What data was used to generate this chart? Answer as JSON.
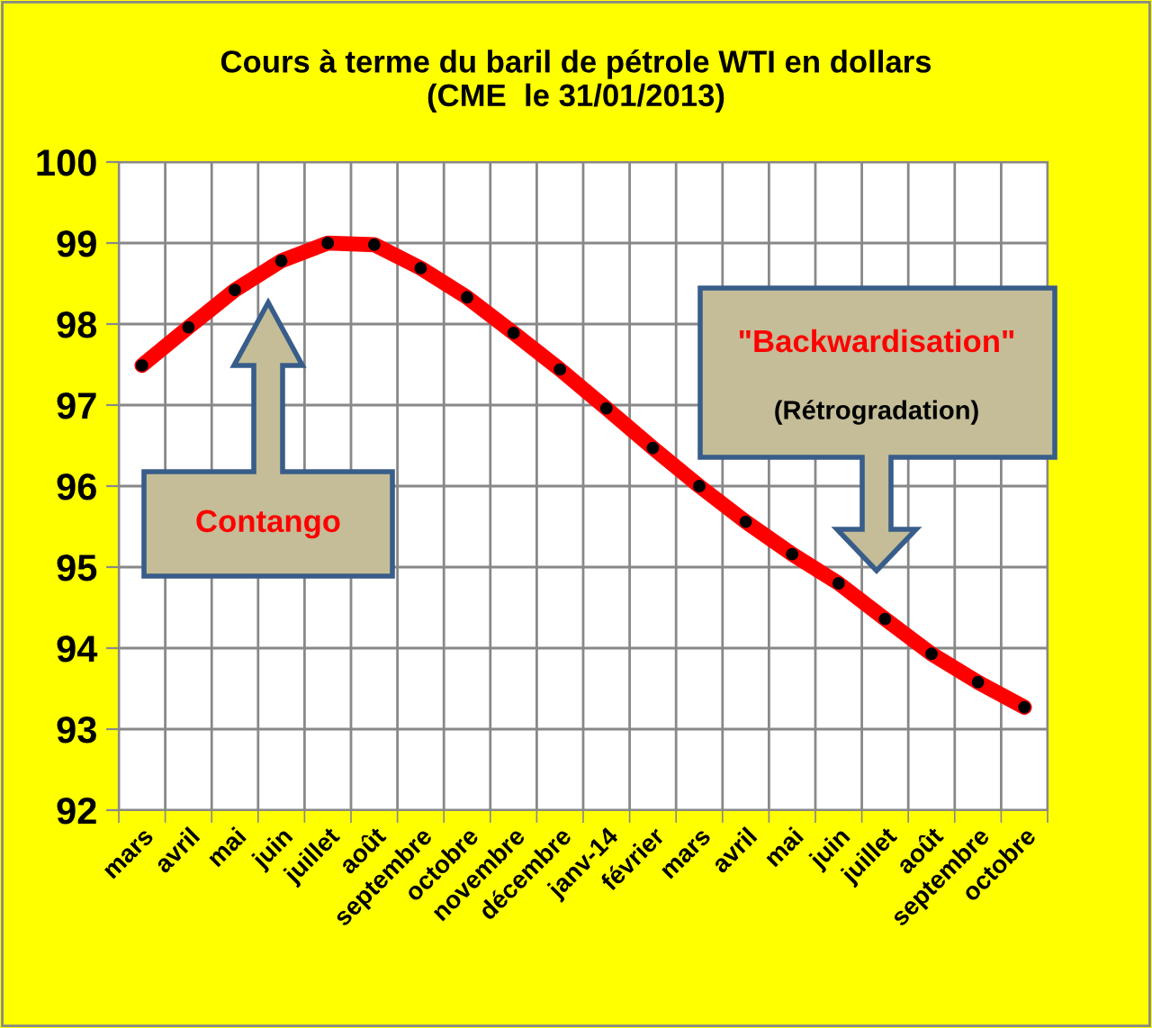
{
  "chart_data": {
    "type": "line",
    "title": "Cours à terme du baril de pétrole WTI en dollars\n(CME  le 31/01/2013)",
    "categories": [
      "mars",
      "avril",
      "mai",
      "juin",
      "juillet",
      "août",
      "septembre",
      "octobre",
      "novembre",
      "décembre",
      "janv-14",
      "février",
      "mars",
      "avril",
      "mai",
      "juin",
      "juillet",
      "août",
      "septembre",
      "octobre"
    ],
    "series": [
      {
        "color": "#ff0000",
        "values": [
          97.49,
          97.96,
          98.42,
          98.78,
          99.0,
          98.98,
          98.69,
          98.33,
          97.89,
          97.44,
          96.96,
          96.47,
          96.0,
          95.56,
          95.16,
          94.8,
          94.36,
          93.93,
          93.58,
          93.27
        ]
      }
    ],
    "ylim": [
      92,
      100
    ],
    "yticks": [
      92,
      93,
      94,
      95,
      96,
      97,
      98,
      99,
      100
    ],
    "grid": true,
    "marker": "circle",
    "line_style": "solid",
    "legend": false,
    "annotations": [
      "Contango",
      "\"Backwardisation\"",
      "(Rétrogradation)"
    ]
  }
}
